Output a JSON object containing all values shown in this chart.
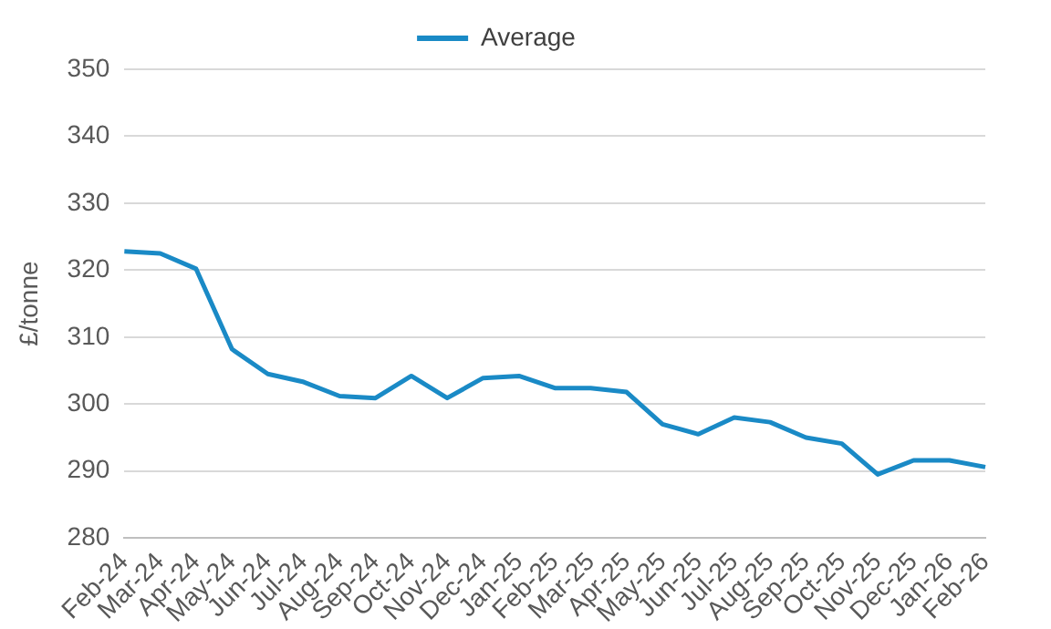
{
  "chart_data": {
    "type": "line",
    "ylabel": "£/tonne",
    "categories": [
      "Feb-24",
      "Mar-24",
      "Apr-24",
      "May-24",
      "Jun-24",
      "Jul-24",
      "Aug-24",
      "Sep-24",
      "Oct-24",
      "Nov-24",
      "Dec-24",
      "Jan-25",
      "Feb-25",
      "Mar-25",
      "Apr-25",
      "May-25",
      "Jun-25",
      "Jul-25",
      "Aug-25",
      "Sep-25",
      "Oct-25",
      "Nov-25",
      "Dec-25",
      "Jan-26",
      "Feb-26"
    ],
    "series": [
      {
        "name": "Average",
        "color": "#1a8ac6",
        "values": [
          322.8,
          322.5,
          320.2,
          308.2,
          304.5,
          303.3,
          301.2,
          300.9,
          304.2,
          300.9,
          303.9,
          304.2,
          302.4,
          302.4,
          301.8,
          297.0,
          295.5,
          298.0,
          297.3,
          295.0,
          294.1,
          289.5,
          291.6,
          291.6,
          290.6
        ]
      }
    ],
    "ylim": [
      280,
      350
    ],
    "yticks": [
      280,
      290,
      300,
      310,
      320,
      330,
      340,
      350
    ],
    "grid": "y",
    "legend": "top",
    "marker": "none",
    "line_style": "solid"
  }
}
